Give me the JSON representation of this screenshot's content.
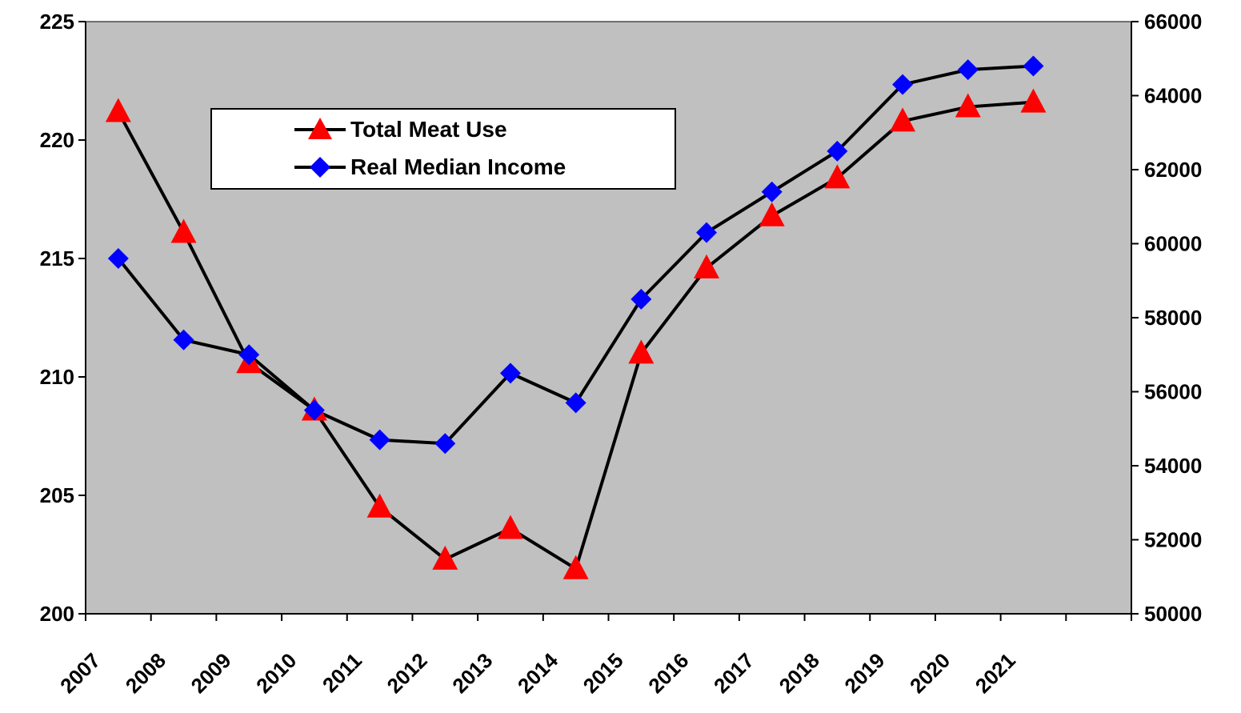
{
  "chart_data": {
    "type": "line",
    "categories": [
      "2007",
      "2008",
      "2009",
      "2010",
      "2011",
      "2012",
      "2013",
      "2014",
      "2015",
      "2016",
      "2017",
      "2018",
      "2019",
      "2020",
      "2021"
    ],
    "series": [
      {
        "name": "Total Meat Use",
        "axis": "left",
        "marker": "triangle",
        "color": "#ff0000",
        "values": [
          221.2,
          216.1,
          210.6,
          208.6,
          204.5,
          202.3,
          203.6,
          201.9,
          211.0,
          214.6,
          216.8,
          218.4,
          220.8,
          221.4,
          221.6
        ]
      },
      {
        "name": "Real Median Income",
        "axis": "right",
        "marker": "diamond",
        "color": "#0000ff",
        "values": [
          59600,
          57400,
          57000,
          55500,
          54700,
          54600,
          56500,
          55700,
          58500,
          60300,
          61400,
          62500,
          64300,
          64700,
          64800
        ]
      }
    ],
    "y_left": {
      "min": 200,
      "max": 225,
      "ticks": [
        "200",
        "205",
        "210",
        "215",
        "220",
        "225"
      ]
    },
    "y_right": {
      "min": 50000,
      "max": 66000,
      "ticks": [
        "50000",
        "52000",
        "54000",
        "56000",
        "58000",
        "60000",
        "62000",
        "64000",
        "66000"
      ]
    },
    "title": "",
    "xlabel": "",
    "ylabel": "",
    "legend_placement": "top-left",
    "grid": false,
    "plot_background": "#c0c0c0",
    "line_color": "#000000"
  }
}
